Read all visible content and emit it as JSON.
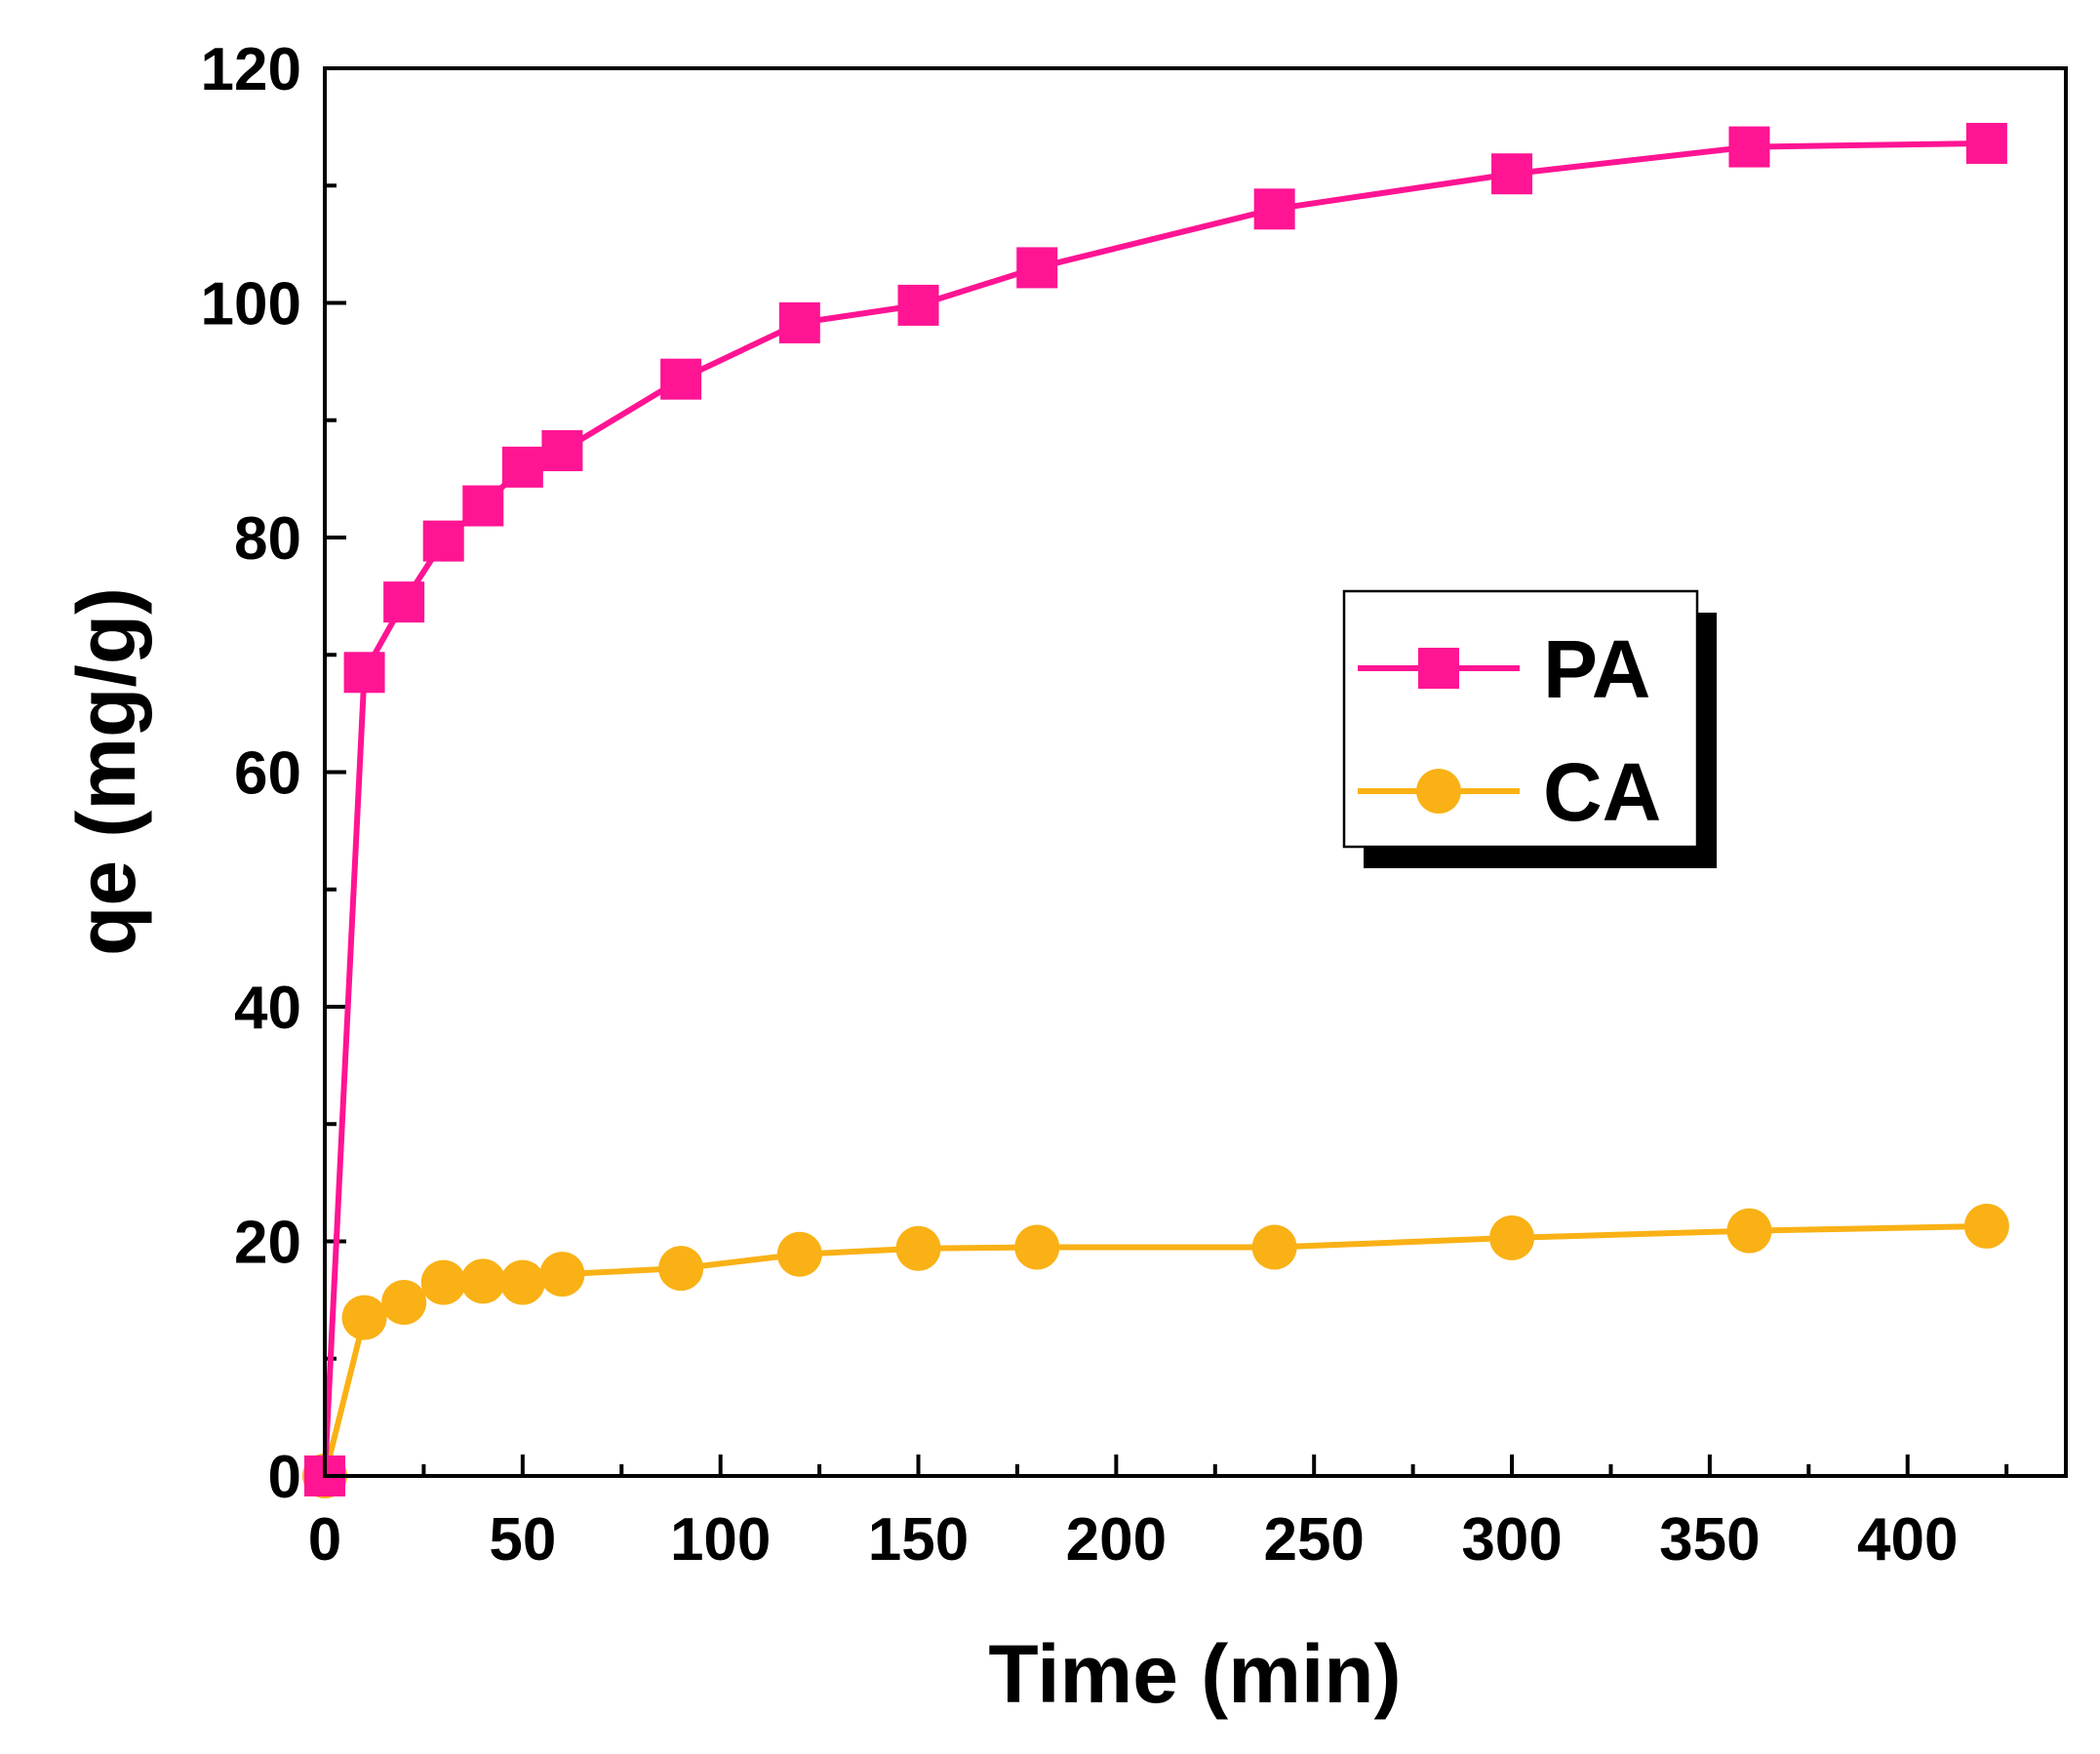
{
  "chart_data": {
    "type": "line",
    "title": "",
    "xlabel": "Time (min)",
    "ylabel": "qe (mg/g)",
    "xlim": [
      0,
      440
    ],
    "ylim": [
      0,
      120
    ],
    "x_ticks": [
      0,
      50,
      100,
      150,
      200,
      250,
      300,
      350,
      400
    ],
    "y_ticks": [
      0,
      20,
      40,
      60,
      80,
      100,
      120
    ],
    "x_tick_labels": [
      "0",
      "50",
      "100",
      "150",
      "200",
      "250",
      "300",
      "350",
      "400"
    ],
    "y_tick_labels": [
      "0",
      "20",
      "40",
      "60",
      "80",
      "100",
      "120"
    ],
    "grid": false,
    "legend_position": "center-right",
    "series": [
      {
        "name": "PA",
        "marker": "square",
        "color": "#FF1493",
        "x": [
          0,
          10,
          20,
          30,
          40,
          50,
          60,
          90,
          120,
          150,
          180,
          240,
          300,
          360,
          420
        ],
        "values": [
          0,
          68.5,
          74.5,
          79.7,
          82.7,
          86.0,
          87.4,
          93.5,
          98.3,
          99.8,
          103.0,
          108.0,
          111.0,
          113.3,
          113.6
        ]
      },
      {
        "name": "CA",
        "marker": "circle",
        "color": "#F9B115",
        "x": [
          0,
          10,
          20,
          30,
          40,
          50,
          60,
          90,
          120,
          150,
          180,
          240,
          300,
          360,
          420
        ],
        "values": [
          0,
          13.5,
          14.8,
          16.5,
          16.6,
          16.5,
          17.2,
          17.7,
          18.9,
          19.4,
          19.5,
          19.5,
          20.3,
          20.9,
          21.3
        ]
      }
    ]
  }
}
